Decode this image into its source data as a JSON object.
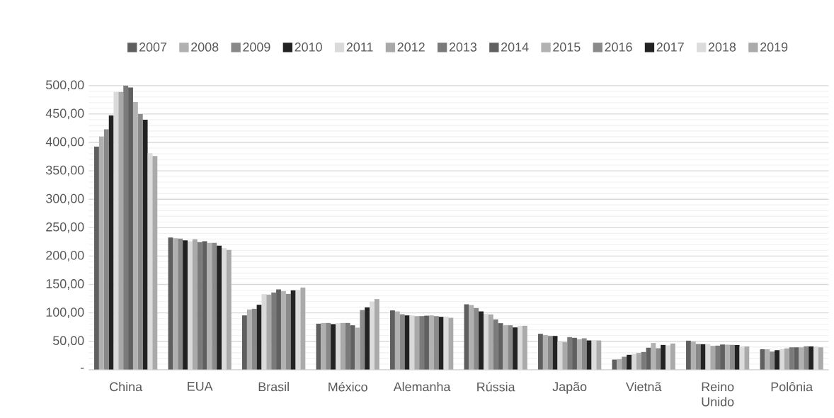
{
  "chart_data": {
    "type": "bar",
    "categories": [
      "China",
      "EUA",
      "Brasil",
      "México",
      "Alemanha",
      "Rússia",
      "Japão",
      "Vietnã",
      "Reino Unido",
      "Polônia"
    ],
    "series": [
      {
        "name": "2007",
        "color": "#5f5f5f",
        "values": [
          392.8,
          232.8,
          95.6,
          81.0,
          104.4,
          115.1,
          63.2,
          17.8,
          51.1,
          35.8
        ]
      },
      {
        "name": "2008",
        "color": "#b0b0b0",
        "values": [
          410.2,
          231.5,
          106.0,
          82.3,
          102.6,
          113.8,
          61.1,
          18.5,
          49.5,
          35.8
        ]
      },
      {
        "name": "2009",
        "color": "#888888",
        "values": [
          423.0,
          230.7,
          107.2,
          82.3,
          97.6,
          108.5,
          59.4,
          22.8,
          45.3,
          32.0
        ]
      },
      {
        "name": "2010",
        "color": "#222222",
        "values": [
          447.6,
          227.8,
          114.3,
          80.2,
          95.6,
          102.6,
          59.4,
          26.2,
          44.9,
          34.5
        ]
      },
      {
        "name": "2011",
        "color": "#dadada",
        "values": [
          489.0,
          226.0,
          133.0,
          81.9,
          95.6,
          98.1,
          49.9,
          27.8,
          45.3,
          36.2
        ]
      },
      {
        "name": "2012",
        "color": "#a9a9a9",
        "values": [
          489.0,
          229.4,
          132.2,
          82.3,
          94.3,
          97.3,
          48.6,
          29.5,
          42.0,
          37.4
        ]
      },
      {
        "name": "2013",
        "color": "#7a7a7a",
        "values": [
          500.0,
          224.4,
          135.9,
          82.3,
          94.3,
          88.5,
          57.4,
          31.2,
          42.4,
          39.5
        ]
      },
      {
        "name": "2014",
        "color": "#606060",
        "values": [
          496.6,
          226.0,
          141.3,
          78.2,
          95.1,
          81.9,
          56.1,
          38.7,
          44.5,
          39.5
        ]
      },
      {
        "name": "2015",
        "color": "#b2b2b2",
        "values": [
          471.0,
          223.2,
          138.4,
          74.0,
          95.6,
          78.2,
          53.6,
          47.0,
          44.0,
          39.5
        ]
      },
      {
        "name": "2016",
        "color": "#8a8a8a",
        "values": [
          450.0,
          223.2,
          133.4,
          105.0,
          94.3,
          78.2,
          55.3,
          37.8,
          43.6,
          41.1
        ]
      },
      {
        "name": "2017",
        "color": "#222222",
        "values": [
          439.8,
          218.2,
          139.7,
          109.7,
          93.1,
          74.4,
          51.5,
          43.6,
          43.3,
          40.8
        ]
      },
      {
        "name": "2018",
        "color": "#dcdcdc",
        "values": [
          381.0,
          214.0,
          140.5,
          119.7,
          93.6,
          77.3,
          52.0,
          42.8,
          40.8,
          40.8
        ]
      },
      {
        "name": "2019",
        "color": "#aaaaaa",
        "values": [
          376.0,
          210.7,
          144.6,
          124.3,
          91.4,
          77.3,
          51.5,
          46.1,
          40.8,
          39.5
        ]
      }
    ],
    "ylim": [
      0,
      500
    ],
    "yticks": [
      {
        "value": 0,
        "label": "-"
      },
      {
        "value": 50,
        "label": "50,00"
      },
      {
        "value": 100,
        "label": "100,00"
      },
      {
        "value": 150,
        "label": "150,00"
      },
      {
        "value": 200,
        "label": "200,00"
      },
      {
        "value": 250,
        "label": "250,00"
      },
      {
        "value": 300,
        "label": "300,00"
      },
      {
        "value": 350,
        "label": "350,00"
      },
      {
        "value": 400,
        "label": "400,00"
      },
      {
        "value": 450,
        "label": "450,00"
      },
      {
        "value": 500,
        "label": "500,00"
      }
    ],
    "grid": "y",
    "legend": "top"
  }
}
